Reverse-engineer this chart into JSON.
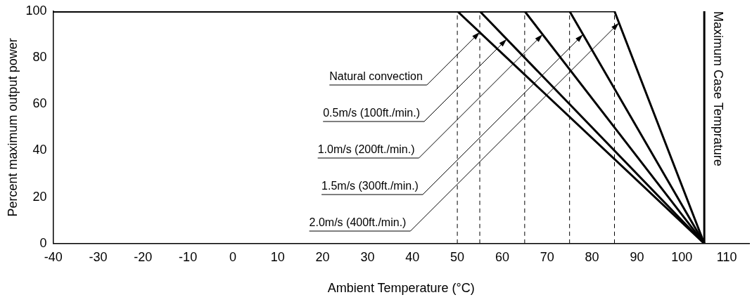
{
  "chart_data": {
    "type": "line",
    "xlabel": "Ambient Temperature (°C)",
    "ylabel": "Percent maximum output power",
    "xlim": [
      -40,
      115
    ],
    "xticks": [
      -40,
      -30,
      -20,
      -10,
      0,
      10,
      20,
      30,
      40,
      50,
      60,
      70,
      80,
      90,
      100,
      110
    ],
    "ylim": [
      0,
      100
    ],
    "yticks": [
      0,
      20,
      40,
      60,
      80,
      100
    ],
    "grid": false,
    "legend": false,
    "marker": "none",
    "line_style": "solid",
    "series": [
      {
        "color": "#000000",
        "x": [
          -40,
          50,
          105
        ],
        "values": [
          100,
          100,
          0
        ]
      },
      {
        "color": "#000000",
        "x": [
          -40,
          55,
          105
        ],
        "values": [
          100,
          100,
          0
        ]
      },
      {
        "color": "#000000",
        "x": [
          -40,
          65,
          105
        ],
        "values": [
          100,
          100,
          0
        ]
      },
      {
        "color": "#000000",
        "x": [
          -40,
          75,
          105
        ],
        "values": [
          100,
          100,
          0
        ]
      },
      {
        "color": "#000000",
        "x": [
          -40,
          85,
          105
        ],
        "values": [
          100,
          100,
          0
        ]
      }
    ],
    "annotations": [
      {
        "text": "Natural convection",
        "x": 55,
        "y": 91
      },
      {
        "text": "0.5m/s (100ft./min.)",
        "x": 61,
        "y": 88
      },
      {
        "text": "1.0m/s (200ft./min.)",
        "x": 69,
        "y": 90
      },
      {
        "text": "1.5m/s (300ft./min.)",
        "x": 78,
        "y": 90
      },
      {
        "text": "2.0m/s (400ft./min.)",
        "x": 86,
        "y": 95
      }
    ],
    "ref_lines": [
      {
        "axis": "x",
        "value": 50,
        "color": "#000000",
        "line_style": "dashed"
      },
      {
        "axis": "x",
        "value": 55,
        "color": "#000000",
        "line_style": "dashed"
      },
      {
        "axis": "x",
        "value": 65,
        "color": "#000000",
        "line_style": "dashed"
      },
      {
        "axis": "x",
        "value": 75,
        "color": "#000000",
        "line_style": "dashed"
      },
      {
        "axis": "x",
        "value": 85,
        "color": "#000000",
        "line_style": "dashed"
      },
      {
        "axis": "x",
        "value": 105,
        "color": "#000000",
        "line_style": "solid",
        "label": "Maximum Case Temprature"
      }
    ]
  }
}
